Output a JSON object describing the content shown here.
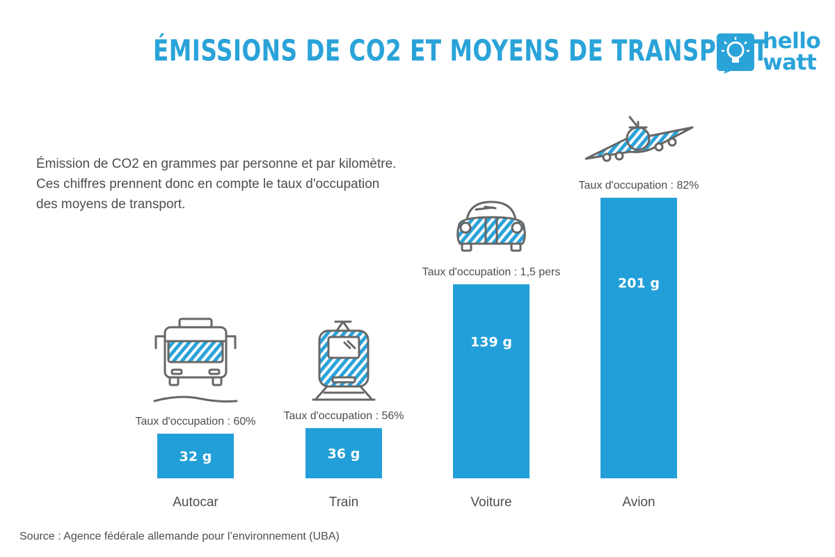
{
  "header": {
    "title": "ÉMISSIONS DE CO2 ET MOYENS DE TRANSPORT",
    "logo_line1": "hello",
    "logo_line2": "watt"
  },
  "subtitle_lines": [
    "Émission de CO2 en grammes par personne et par kilomètre.",
    "Ces chiffres prennent donc en compte le taux d'occupation",
    "des moyens de transport."
  ],
  "source": "Source : Agence fédérale allemande pour l’environnement (UBA)",
  "colors": {
    "accent": "#2aa3d9",
    "bar": "#229fd8",
    "icon_stroke": "#666666"
  },
  "chart_data": {
    "type": "bar",
    "title": "ÉMISSIONS DE CO2 ET MOYENS DE TRANSPORT",
    "categories": [
      "Autocar",
      "Train",
      "Voiture",
      "Avion"
    ],
    "values": [
      32,
      36,
      139,
      201
    ],
    "value_labels": [
      "32 g",
      "36 g",
      "139 g",
      "201 g"
    ],
    "annotations": [
      "Taux d'occupation : 60%",
      "Taux d'occupation : 56%",
      "Taux d'occupation : 1,5 pers",
      "Taux d'occupation : 82%"
    ],
    "icons": [
      "bus-icon",
      "train-icon",
      "car-icon",
      "airplane-icon"
    ],
    "ylim": [
      0,
      201
    ],
    "grid": false,
    "legend": "none"
  }
}
